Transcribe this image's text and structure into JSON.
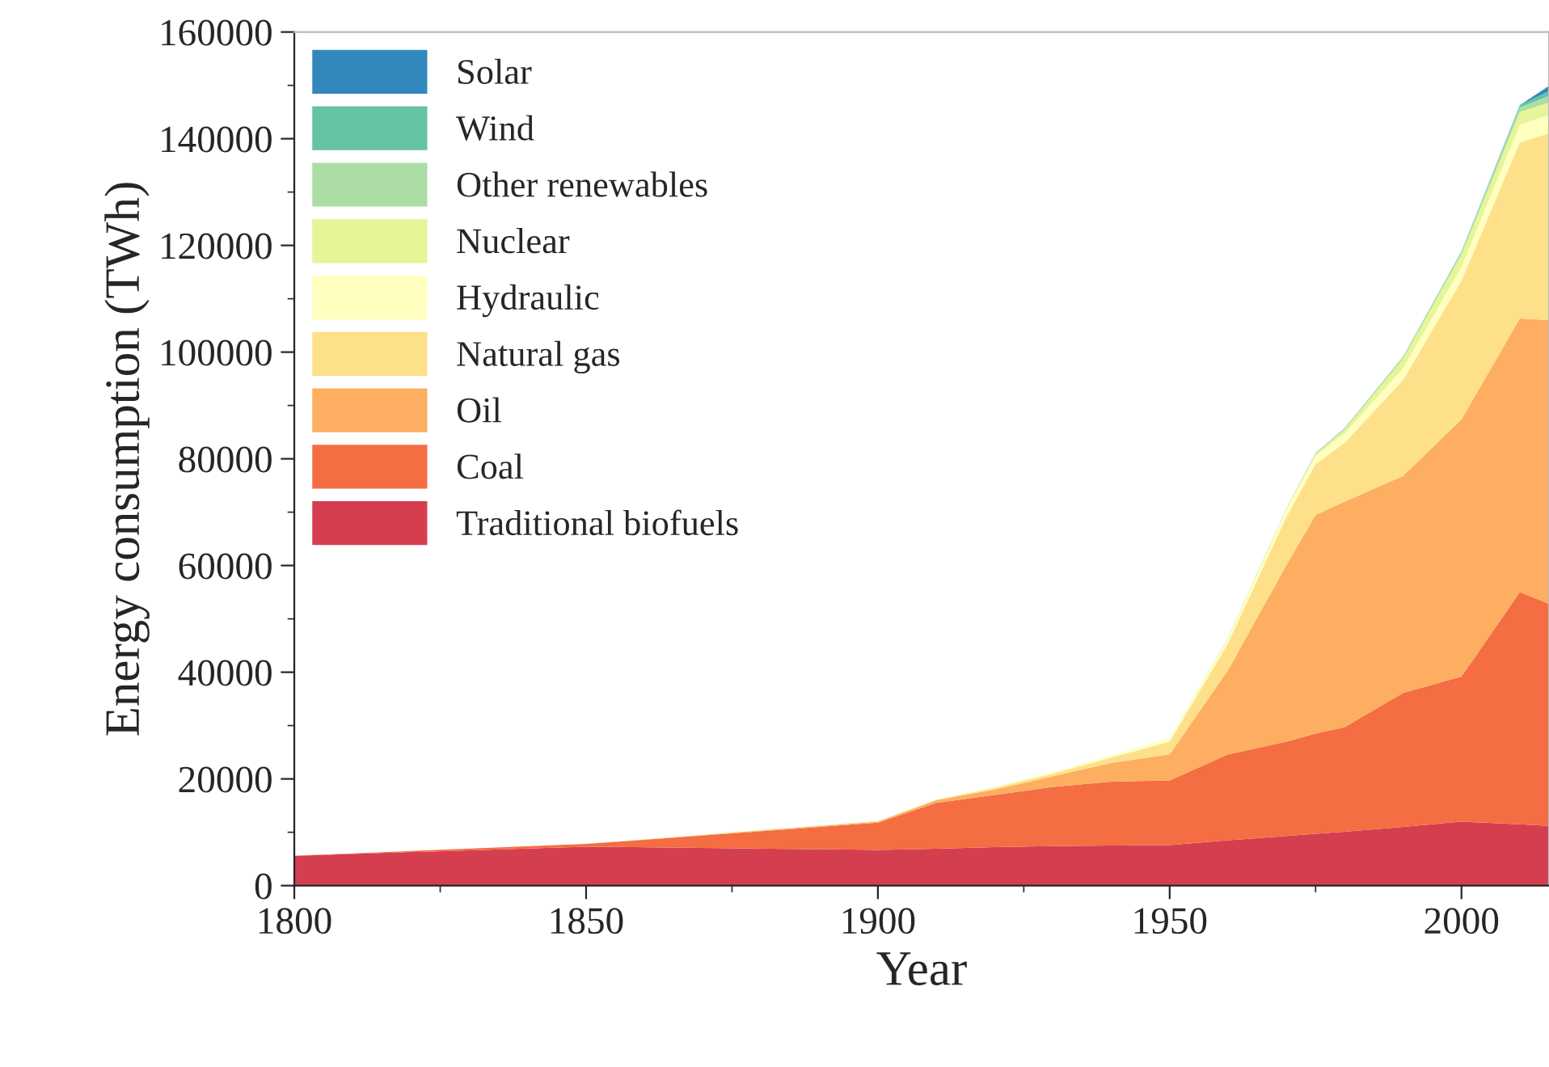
{
  "chart_data": {
    "type": "area",
    "stacked": true,
    "xlabel": "Year",
    "ylabel": "Energy consumption (TWh)",
    "x": [
      1800,
      1850,
      1900,
      1910,
      1920,
      1930,
      1940,
      1950,
      1960,
      1970,
      1975,
      1980,
      1990,
      2000,
      2010,
      2015
    ],
    "series": [
      {
        "name": "Traditional biofuels",
        "color": "#d53e4f",
        "values": [
          5600,
          7300,
          6700,
          6900,
          7200,
          7400,
          7500,
          7600,
          8500,
          9300,
          9700,
          10100,
          11000,
          12000,
          11500,
          11200
        ]
      },
      {
        "name": "Coal",
        "color": "#f46d43",
        "values": [
          0,
          500,
          5100,
          8600,
          9800,
          11100,
          12000,
          12100,
          16100,
          17700,
          18800,
          19600,
          25100,
          27200,
          43500,
          41600
        ]
      },
      {
        "name": "Oil",
        "color": "#fdae61",
        "values": [
          0,
          0,
          200,
          500,
          1000,
          2000,
          3500,
          4900,
          15800,
          33100,
          41000,
          42300,
          40700,
          48200,
          51300,
          53200
        ]
      },
      {
        "name": "Natural gas",
        "color": "#fee08b",
        "values": [
          0,
          0,
          100,
          100,
          300,
          500,
          1000,
          2400,
          5000,
          9000,
          9500,
          11000,
          18000,
          26000,
          33000,
          35000
        ]
      },
      {
        "name": "Hydraulic",
        "color": "#ffffbf",
        "values": [
          0,
          0,
          0,
          100,
          200,
          300,
          400,
          600,
          1000,
          1400,
          1600,
          1800,
          2200,
          2600,
          3300,
          3500
        ]
      },
      {
        "name": "Nuclear",
        "color": "#e6f598",
        "values": [
          0,
          0,
          0,
          0,
          0,
          0,
          0,
          0,
          0,
          100,
          300,
          700,
          1800,
          2300,
          2400,
          2300
        ]
      },
      {
        "name": "Other renewables",
        "color": "#abdda4",
        "values": [
          0,
          0,
          0,
          0,
          0,
          0,
          0,
          0,
          100,
          100,
          200,
          300,
          400,
          500,
          900,
          1200
        ]
      },
      {
        "name": "Wind",
        "color": "#66c2a5",
        "values": [
          0,
          0,
          0,
          0,
          0,
          0,
          0,
          0,
          0,
          0,
          0,
          0,
          0,
          100,
          400,
          900
        ]
      },
      {
        "name": "Solar",
        "color": "#3288bd",
        "values": [
          0,
          0,
          0,
          0,
          0,
          0,
          0,
          0,
          0,
          0,
          0,
          0,
          0,
          0,
          0,
          1000
        ]
      }
    ],
    "xlim": [
      1800,
      2015
    ],
    "xticks": [
      1800,
      1850,
      1900,
      1950,
      2000
    ],
    "ylim": [
      0,
      160000
    ],
    "yticks": [
      0,
      20000,
      40000,
      60000,
      80000,
      100000,
      120000,
      140000,
      160000
    ],
    "grid": false,
    "legend": "top left"
  }
}
